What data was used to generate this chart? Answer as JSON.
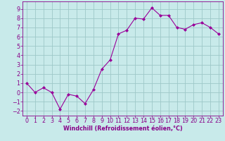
{
  "x": [
    0,
    1,
    2,
    3,
    4,
    5,
    6,
    7,
    8,
    9,
    10,
    11,
    12,
    13,
    14,
    15,
    16,
    17,
    18,
    19,
    20,
    21,
    22,
    23
  ],
  "y": [
    1,
    0,
    0.5,
    0,
    -1.8,
    -0.2,
    -0.4,
    -1.2,
    0.3,
    2.5,
    3.5,
    6.3,
    6.7,
    8.0,
    7.9,
    9.1,
    8.3,
    8.3,
    7.0,
    6.8,
    7.3,
    7.5,
    7.0,
    6.3
  ],
  "line_color": "#990099",
  "marker": "D",
  "marker_size": 2.0,
  "bg_color": "#c8eaea",
  "grid_color": "#9dc8c8",
  "xlabel": "Windchill (Refroidissement éolien,°C)",
  "xlabel_color": "#880088",
  "xlabel_fontsize": 5.8,
  "tick_color": "#880088",
  "tick_fontsize": 5.8,
  "ylim": [
    -2.5,
    9.8
  ],
  "xlim": [
    -0.5,
    23.5
  ],
  "yticks": [
    -2,
    -1,
    0,
    1,
    2,
    3,
    4,
    5,
    6,
    7,
    8,
    9
  ],
  "xticks": [
    0,
    1,
    2,
    3,
    4,
    5,
    6,
    7,
    8,
    9,
    10,
    11,
    12,
    13,
    14,
    15,
    16,
    17,
    18,
    19,
    20,
    21,
    22,
    23
  ]
}
